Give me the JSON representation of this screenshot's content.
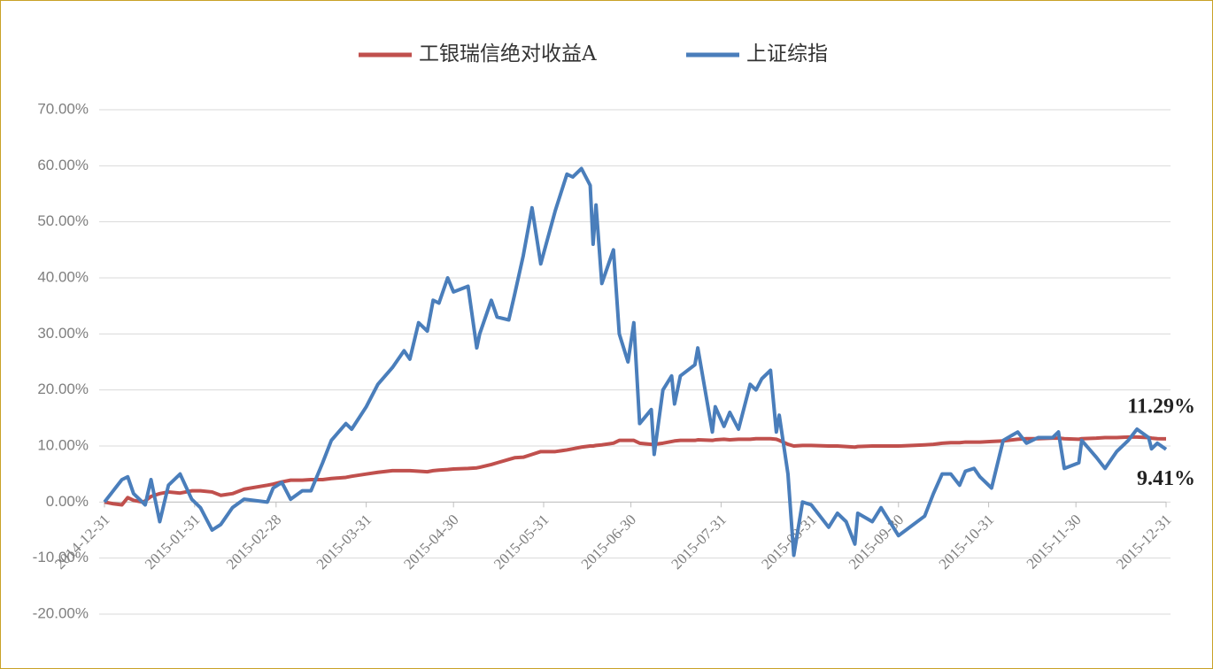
{
  "chart_data": {
    "type": "line",
    "x": [
      "2014-12-31",
      "2015-01-03",
      "2015-01-06",
      "2015-01-08",
      "2015-01-10",
      "2015-01-13",
      "2015-01-14",
      "2015-01-16",
      "2015-01-19",
      "2015-01-22",
      "2015-01-26",
      "2015-01-30",
      "2015-02-02",
      "2015-02-06",
      "2015-02-09",
      "2015-02-13",
      "2015-02-17",
      "2015-02-25",
      "2015-02-27",
      "2015-03-02",
      "2015-03-05",
      "2015-03-09",
      "2015-03-12",
      "2015-03-16",
      "2015-03-19",
      "2015-03-24",
      "2015-03-26",
      "2015-03-31",
      "2015-04-04",
      "2015-04-09",
      "2015-04-13",
      "2015-04-15",
      "2015-04-18",
      "2015-04-21",
      "2015-04-23",
      "2015-04-25",
      "2015-04-28",
      "2015-04-30",
      "2015-05-05",
      "2015-05-08",
      "2015-05-09",
      "2015-05-13",
      "2015-05-15",
      "2015-05-19",
      "2015-05-21",
      "2015-05-24",
      "2015-05-27",
      "2015-05-30",
      "2015-06-04",
      "2015-06-08",
      "2015-06-10",
      "2015-06-13",
      "2015-06-16",
      "2015-06-17",
      "2015-06-18",
      "2015-06-20",
      "2015-06-24",
      "2015-06-26",
      "2015-06-29",
      "2015-07-01",
      "2015-07-03",
      "2015-07-07",
      "2015-07-08",
      "2015-07-11",
      "2015-07-14",
      "2015-07-15",
      "2015-07-17",
      "2015-07-22",
      "2015-07-23",
      "2015-07-28",
      "2015-07-29",
      "2015-08-01",
      "2015-08-03",
      "2015-08-06",
      "2015-08-10",
      "2015-08-12",
      "2015-08-14",
      "2015-08-17",
      "2015-08-19",
      "2015-08-20",
      "2015-08-23",
      "2015-08-25",
      "2015-08-28",
      "2015-08-31",
      "2015-09-06",
      "2015-09-09",
      "2015-09-12",
      "2015-09-15",
      "2015-09-16",
      "2015-09-21",
      "2015-09-24",
      "2015-09-30",
      "2015-10-09",
      "2015-10-12",
      "2015-10-15",
      "2015-10-18",
      "2015-10-21",
      "2015-10-23",
      "2015-10-26",
      "2015-10-28",
      "2015-11-01",
      "2015-11-05",
      "2015-11-10",
      "2015-11-13",
      "2015-11-17",
      "2015-11-22",
      "2015-11-24",
      "2015-11-26",
      "2015-12-01",
      "2015-12-02",
      "2015-12-07",
      "2015-12-10",
      "2015-12-14",
      "2015-12-18",
      "2015-12-21",
      "2015-12-25",
      "2015-12-26",
      "2015-12-28",
      "2015-12-31"
    ],
    "series": [
      {
        "name": "工银瑞信绝对收益A",
        "color": "#c0504d",
        "values": [
          0,
          -0.3,
          -0.5,
          0.8,
          0.3,
          0,
          0.2,
          1,
          1.5,
          1.8,
          1.6,
          2,
          2,
          1.8,
          1.2,
          1.5,
          2.3,
          3,
          3.2,
          3.6,
          3.9,
          3.9,
          4,
          4,
          4.2,
          4.4,
          4.6,
          5,
          5.3,
          5.6,
          5.6,
          5.6,
          5.5,
          5.4,
          5.6,
          5.7,
          5.8,
          5.9,
          6,
          6.1,
          6.2,
          6.7,
          7,
          7.6,
          7.9,
          8,
          8.5,
          9,
          9,
          9.3,
          9.5,
          9.8,
          10,
          10,
          10.1,
          10.2,
          10.5,
          11,
          11,
          11,
          10.5,
          10.3,
          10.3,
          10.5,
          10.8,
          10.9,
          11,
          11,
          11.1,
          11,
          11.1,
          11.2,
          11.1,
          11.2,
          11.2,
          11.3,
          11.3,
          11.3,
          11.2,
          11,
          10.3,
          10,
          10.1,
          10.1,
          10,
          10,
          9.9,
          9.8,
          9.9,
          10,
          10,
          10,
          10.2,
          10.3,
          10.5,
          10.6,
          10.6,
          10.7,
          10.7,
          10.7,
          10.8,
          10.9,
          11.2,
          11.3,
          11.3,
          11.4,
          11.4,
          11.3,
          11.2,
          11.3,
          11.4,
          11.5,
          11.5,
          11.6,
          11.6,
          11.5,
          11.4,
          11.3,
          11.29
        ]
      },
      {
        "name": "上证综指",
        "color": "#4a7ebb",
        "values": [
          0,
          2,
          4,
          4.5,
          1.5,
          0,
          -0.5,
          4,
          -3.5,
          3,
          5,
          0.5,
          -1,
          -5,
          -4,
          -1,
          0.5,
          0,
          2.5,
          3.5,
          0.5,
          2,
          2,
          7,
          11,
          14,
          13,
          17,
          21,
          24,
          27,
          25.5,
          32,
          30.5,
          36,
          35.5,
          40,
          37.5,
          38.5,
          27.5,
          30,
          36,
          33,
          32.5,
          37,
          44,
          52.5,
          42.5,
          52,
          58.5,
          58,
          59.5,
          56.5,
          46,
          53,
          39,
          45,
          30,
          25,
          32,
          14,
          16.5,
          8.5,
          20,
          22.5,
          17.5,
          22.5,
          24.5,
          27.5,
          12.5,
          17,
          13.5,
          16,
          13,
          21,
          20,
          22,
          23.5,
          12.5,
          15.5,
          5,
          -9.5,
          0,
          -0.5,
          -4.5,
          -2,
          -3.5,
          -7.5,
          -2,
          -3.5,
          -1,
          -6,
          -2.5,
          1.5,
          5,
          5,
          3,
          5.5,
          6,
          4.5,
          2.5,
          11,
          12.5,
          10.5,
          11.5,
          11.5,
          12.5,
          6,
          7,
          11,
          8,
          6,
          9,
          11,
          13,
          11.5,
          9.5,
          10.5,
          9.41
        ]
      }
    ],
    "annotations": [
      {
        "text": "11.29%",
        "value": 11.29
      },
      {
        "text": "9.41%",
        "value": 9.41
      }
    ],
    "xlim": [
      "2014-12-31",
      "2015-12-31"
    ],
    "xticks": [
      "2014-12-31",
      "2015-01-31",
      "2015-02-28",
      "2015-03-31",
      "2015-04-30",
      "2015-05-31",
      "2015-06-30",
      "2015-07-31",
      "2015-08-31",
      "2015-09-30",
      "2015-10-31",
      "2015-11-30",
      "2015-12-31"
    ],
    "ylim": [
      -20,
      70
    ],
    "yticks": [
      {
        "value": -20,
        "label": "-20.00%"
      },
      {
        "value": -10,
        "label": "-10.00%"
      },
      {
        "value": 0,
        "label": "0.00%"
      },
      {
        "value": 10,
        "label": "10.00%"
      },
      {
        "value": 20,
        "label": "20.00%"
      },
      {
        "value": 30,
        "label": "30.00%"
      },
      {
        "value": 40,
        "label": "40.00%"
      },
      {
        "value": 50,
        "label": "50.00%"
      },
      {
        "value": 60,
        "label": "60.00%"
      },
      {
        "value": 70,
        "label": "70.00%"
      }
    ],
    "grid": true
  }
}
